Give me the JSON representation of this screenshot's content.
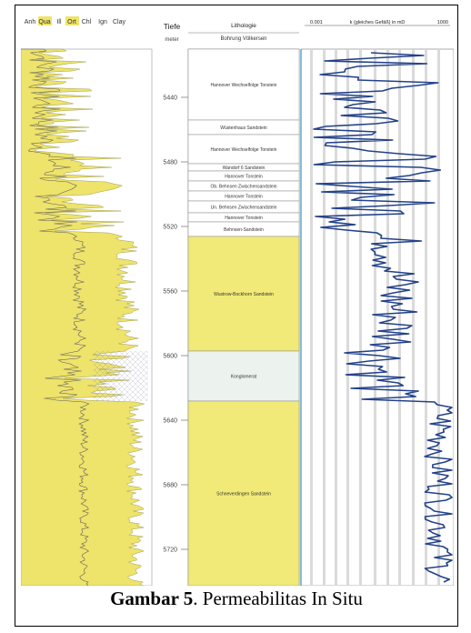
{
  "figure": {
    "mineral_columns": [
      "Anh",
      "Qua",
      "Ill",
      "Ort",
      "Chl",
      "Ign",
      "Clay"
    ],
    "depth_header": "Tiefe",
    "depth_unit": "meter",
    "depth_ticks": [
      "5440",
      "5480",
      "5520",
      "5560",
      "5600",
      "5640",
      "5680",
      "5720"
    ],
    "lithology_header": "Lithologie",
    "borehole_name": "Bohrung Völkersen",
    "perm_header_min": "0.001",
    "perm_header_label": "k (gleiches Gefäß) in mD",
    "perm_header_max": "1000",
    "lithology_units": [
      {
        "label": "Hannover Wechselfolge Tonstein",
        "fill": "#ffffff"
      },
      {
        "label": "Wüstenhaus Sandstein",
        "fill": "#ffffff"
      },
      {
        "label": "Hannover Wechselfolge Tonstein",
        "fill": "#ffffff"
      },
      {
        "label": "Wandorf 6 Sandstein",
        "fill": "#ffffff"
      },
      {
        "label": "Hannover Tonstein",
        "fill": "#ffffff"
      },
      {
        "label": "Ob. Behnsen Zwischensandstein",
        "fill": "#ffffff"
      },
      {
        "label": "Hannover Tonstein",
        "fill": "#ffffff"
      },
      {
        "label": "Un. Behnsen Zwischensandstein",
        "fill": "#ffffff"
      },
      {
        "label": "Hannover Tonstein",
        "fill": "#ffffff"
      },
      {
        "label": "Behnsen-Sandstein",
        "fill": "#ffffff"
      },
      {
        "label": "Wustrow-Bockhorn Sandstein",
        "fill": "#f1ea78"
      },
      {
        "label": "Konglomerat",
        "fill": "#ecf3ee"
      },
      {
        "label": "Schneverdingen Sandstein",
        "fill": "#f1ea78"
      }
    ],
    "colors": {
      "mineral_fill": "#eee36b",
      "perm_curve": "#23428a",
      "grid_bands": "#d6d6d6",
      "frame_line": "#3a8fbf"
    }
  },
  "caption": {
    "label": "Gambar 5",
    "text": ". Permeabilitas In Situ"
  }
}
